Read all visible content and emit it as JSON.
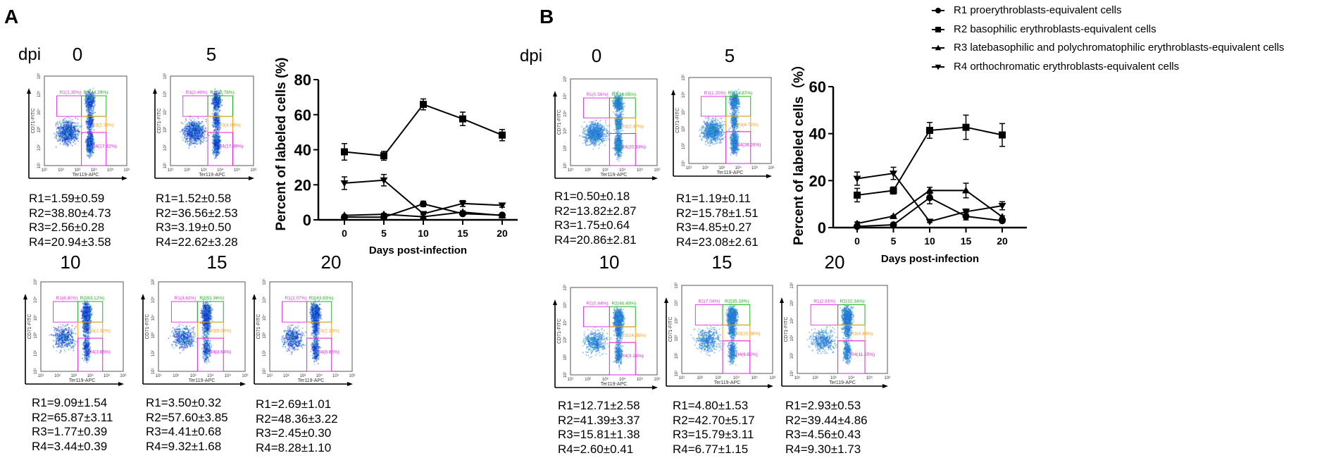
{
  "figure": {
    "panel_a_label": "A",
    "panel_b_label": "B",
    "dpi_label": "dpi",
    "flow_axis": {
      "x_title": "Ter119-APC",
      "y_title": "CD71-FITC",
      "ticks": [
        "10¹",
        "10²",
        "10³",
        "10⁴",
        "10⁵",
        "10⁶"
      ]
    }
  },
  "legend": [
    {
      "key": "R1",
      "label": "R1 proerythroblasts-equivalent cells",
      "marker": "circle"
    },
    {
      "key": "R2",
      "label": "R2 basophilic erythroblasts-equivalent cells",
      "marker": "square"
    },
    {
      "key": "R3",
      "label": "R3 latebasophilic and polychromatophilic erythroblasts-equivalent cells",
      "marker": "triangle-up"
    },
    {
      "key": "R4",
      "label": "R4 orthochromatic erythroblasts-equivalent cells",
      "marker": "triangle-down"
    }
  ],
  "flow_panels": {
    "a0": {
      "day": "0",
      "gates": [
        "R1(1.35%)",
        "R2(44.29%)",
        "R3(2.33%)",
        "R4(17.42%)"
      ],
      "stats": [
        "R1=1.59±0.59",
        "R2=38.80±4.73",
        "R3=2.56±0.28",
        "R4=20.94±3.58"
      ]
    },
    "a5": {
      "day": "5",
      "gates": [
        "R1(2.46%)",
        "R2(38.76%)",
        "R3(4.84%)",
        "R4(17.30%)"
      ],
      "stats": [
        "R1=1.52±0.58",
        "R2=36.56±2.53",
        "R3=3.19±0.50",
        "R4=22.62±3.28"
      ]
    },
    "a10": {
      "day": "10",
      "gates": [
        "R1(8.80%)",
        "R2(63.12%)",
        "R3(1.32%)",
        "R4(3.86%)"
      ],
      "stats": [
        "R1=9.09±1.54",
        "R2=65.87±3.11",
        "R3=1.77±0.39",
        "R4=3.44±0.39"
      ]
    },
    "a15": {
      "day": "15",
      "gates": [
        "R1(3.62%)",
        "R2(51.96%)",
        "R3(5.08%)",
        "R4(3.64%)"
      ],
      "stats": [
        "R1=3.50±0.32",
        "R2=57.60±3.85",
        "R3=4.41±0.68",
        "R4=9.32±1.68"
      ]
    },
    "a20": {
      "day": "20",
      "gates": [
        "R1(2.07%)",
        "R2(43.83%)",
        "R3(2.13%)",
        "R4(8.85%)"
      ],
      "stats": [
        "R1=2.69±1.01",
        "R2=48.36±3.22",
        "R3=2.45±0.30",
        "R4=8.28±1.10"
      ]
    },
    "b0": {
      "day": "0",
      "gates": [
        "R1(0.56%)",
        "R2(14.05%)",
        "R3(2.37%)",
        "R4(20.33%)"
      ],
      "stats": [
        "R1=0.50±0.18",
        "R2=13.82±2.87",
        "R3=1.75±0.64",
        "R4=20.86±2.81"
      ]
    },
    "b5": {
      "day": "5",
      "gates": [
        "R1(1.20%)",
        "R2(14.87%)",
        "R3(4.72%)",
        "R4(26.26%)"
      ],
      "stats": [
        "R1=1.19±0.11",
        "R2=15.78±1.51",
        "R3=4.85±0.27",
        "R4=23.08±2.61"
      ]
    },
    "b10": {
      "day": "10",
      "gates": [
        "R1(0.84%)",
        "R2(44.40%)",
        "R3(14.35%)",
        "R4(3.14%)"
      ],
      "stats": [
        "R1=12.71±2.58",
        "R2=41.39±3.37",
        "R3=15.81±1.38",
        "R4=2.60±0.41"
      ]
    },
    "b15": {
      "day": "15",
      "gates": [
        "R1(7.04%)",
        "R2(35.18%)",
        "R3(20.36%)",
        "R4(6.82%)"
      ],
      "stats": [
        "R1=4.80±1.53",
        "R2=42.70±5.17",
        "R3=15.79±3.11",
        "R4=6.77±1.15"
      ]
    },
    "b20": {
      "day": "20",
      "gates": [
        "R1(2.81%)",
        "R2(32.34%)",
        "R3(4.48%)",
        "R4(11.25%)"
      ],
      "stats": [
        "R1=2.93±0.53",
        "R2=39.44±4.86",
        "R3=4.56±0.43",
        "R4=9.30±1.73"
      ]
    }
  },
  "colors": {
    "R1_gate": "#e040e0",
    "R2_gate": "#22b022",
    "R3_gate": "#f0a020",
    "R4_gate": "#e020e0"
  },
  "chart_data": [
    {
      "id": "A",
      "type": "line",
      "xlabel": "Days post-infection",
      "ylabel": "Percent of labeled cells (%)",
      "x": [
        0,
        5,
        10,
        15,
        20
      ],
      "xticks": [
        "0",
        "5",
        "10",
        "15",
        "20"
      ],
      "ylim": [
        0,
        80
      ],
      "yticks": [
        "0",
        "20",
        "40",
        "60",
        "80"
      ],
      "series": [
        {
          "name": "R1",
          "marker": "circle",
          "values": [
            1.59,
            1.52,
            9.09,
            3.5,
            2.69
          ],
          "errors": [
            0.59,
            0.58,
            1.54,
            0.32,
            1.01
          ]
        },
        {
          "name": "R2",
          "marker": "square",
          "values": [
            38.8,
            36.56,
            65.87,
            57.6,
            48.36
          ],
          "errors": [
            4.73,
            2.53,
            3.11,
            3.85,
            3.22
          ]
        },
        {
          "name": "R3",
          "marker": "triangle-up",
          "values": [
            2.56,
            3.19,
            1.77,
            4.41,
            2.45
          ],
          "errors": [
            0.28,
            0.5,
            0.39,
            0.68,
            0.3
          ]
        },
        {
          "name": "R4",
          "marker": "triangle-down",
          "values": [
            20.94,
            22.62,
            3.44,
            9.32,
            8.28
          ],
          "errors": [
            3.58,
            3.28,
            0.39,
            1.68,
            1.1
          ]
        }
      ]
    },
    {
      "id": "B",
      "type": "line",
      "xlabel": "Days post-infection",
      "ylabel": "Percent of labeled cells（%）",
      "x": [
        0,
        5,
        10,
        15,
        20
      ],
      "xticks": [
        "0",
        "5",
        "10",
        "15",
        "20"
      ],
      "ylim": [
        0,
        60
      ],
      "yticks": [
        "0",
        "20",
        "40",
        "60"
      ],
      "series": [
        {
          "name": "R1",
          "marker": "circle",
          "values": [
            0.5,
            1.19,
            12.71,
            4.8,
            2.93
          ],
          "errors": [
            0.18,
            0.11,
            2.58,
            1.53,
            0.53
          ]
        },
        {
          "name": "R2",
          "marker": "square",
          "values": [
            13.82,
            15.78,
            41.39,
            42.7,
            39.44
          ],
          "errors": [
            2.87,
            1.51,
            3.37,
            5.17,
            4.86
          ]
        },
        {
          "name": "R3",
          "marker": "triangle-up",
          "values": [
            1.75,
            4.85,
            15.81,
            15.79,
            4.56
          ],
          "errors": [
            0.64,
            0.27,
            1.38,
            3.11,
            0.43
          ]
        },
        {
          "name": "R4",
          "marker": "triangle-down",
          "values": [
            20.86,
            23.08,
            2.6,
            6.77,
            9.3
          ],
          "errors": [
            2.81,
            2.61,
            0.41,
            1.15,
            1.73
          ]
        }
      ]
    }
  ]
}
